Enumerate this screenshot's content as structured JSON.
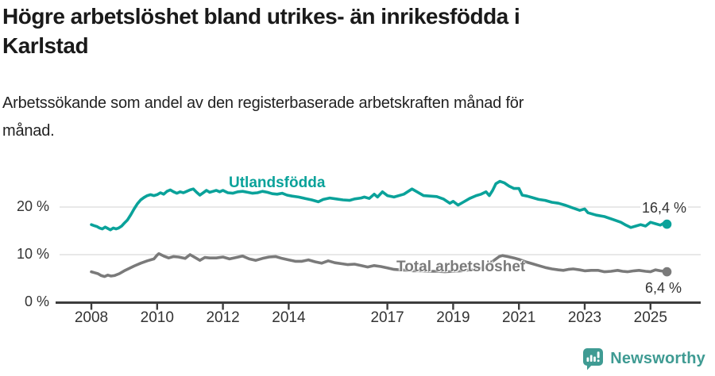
{
  "header": {
    "title_line1": "Högre arbetslöshet bland utrikes- än inrikesfödda i",
    "title_line2": "Karlstad",
    "subtitle_line1": "Arbetssökande som andel av den registerbaserade arbetskraften månad för",
    "subtitle_line2": "månad."
  },
  "footer": {
    "brand": "Newsworthy",
    "brand_color": "#3f9b93"
  },
  "chart_data": {
    "type": "line",
    "title": "Högre arbetslöshet bland utrikes- än inrikesfödda i Karlstad",
    "subtitle": "Arbetssökande som andel av den registerbaserade arbetskraften månad för månad.",
    "xlabel": "",
    "ylabel": "",
    "xlim": [
      2007.0,
      2026.5
    ],
    "ylim": [
      0,
      27.5
    ],
    "grid": "horizontal-only",
    "grid_color": "#d9d9d9",
    "axis_color": "#3d3d3d",
    "y_ticks": [
      {
        "label": "0 %",
        "value": 0
      },
      {
        "label": "10 %",
        "value": 10
      },
      {
        "label": "20 %",
        "value": 20
      }
    ],
    "x_ticks": [
      {
        "label": "2008",
        "value": 2008
      },
      {
        "label": "2010",
        "value": 2010
      },
      {
        "label": "2012",
        "value": 2012
      },
      {
        "label": "2014",
        "value": 2014
      },
      {
        "label": "2017",
        "value": 2017
      },
      {
        "label": "2019",
        "value": 2019
      },
      {
        "label": "2021",
        "value": 2021
      },
      {
        "label": "2023",
        "value": 2023
      },
      {
        "label": "2025",
        "value": 2025
      }
    ],
    "series": [
      {
        "name": "Utlandsfödda",
        "color": "#0aa29a",
        "end_label": "16,4 %",
        "end_value": 16.4,
        "points": [
          [
            2008.0,
            16.3
          ],
          [
            2008.08,
            16.1
          ],
          [
            2008.17,
            15.9
          ],
          [
            2008.25,
            15.6
          ],
          [
            2008.33,
            15.4
          ],
          [
            2008.42,
            15.8
          ],
          [
            2008.5,
            15.5
          ],
          [
            2008.58,
            15.2
          ],
          [
            2008.67,
            15.6
          ],
          [
            2008.75,
            15.4
          ],
          [
            2008.83,
            15.6
          ],
          [
            2008.92,
            16.0
          ],
          [
            2009.0,
            16.6
          ],
          [
            2009.1,
            17.3
          ],
          [
            2009.2,
            18.4
          ],
          [
            2009.3,
            19.6
          ],
          [
            2009.4,
            20.7
          ],
          [
            2009.5,
            21.5
          ],
          [
            2009.6,
            22.0
          ],
          [
            2009.7,
            22.4
          ],
          [
            2009.8,
            22.6
          ],
          [
            2009.9,
            22.4
          ],
          [
            2010.0,
            22.6
          ],
          [
            2010.1,
            23.0
          ],
          [
            2010.2,
            22.7
          ],
          [
            2010.3,
            23.3
          ],
          [
            2010.4,
            23.6
          ],
          [
            2010.5,
            23.2
          ],
          [
            2010.6,
            22.9
          ],
          [
            2010.7,
            23.2
          ],
          [
            2010.8,
            23.0
          ],
          [
            2010.9,
            23.3
          ],
          [
            2011.0,
            23.6
          ],
          [
            2011.1,
            23.8
          ],
          [
            2011.2,
            23.1
          ],
          [
            2011.3,
            22.5
          ],
          [
            2011.4,
            23.0
          ],
          [
            2011.5,
            23.5
          ],
          [
            2011.6,
            23.1
          ],
          [
            2011.7,
            23.3
          ],
          [
            2011.8,
            23.5
          ],
          [
            2011.9,
            23.2
          ],
          [
            2012.0,
            23.5
          ],
          [
            2012.15,
            23.0
          ],
          [
            2012.3,
            22.9
          ],
          [
            2012.45,
            23.2
          ],
          [
            2012.6,
            23.3
          ],
          [
            2012.75,
            23.1
          ],
          [
            2012.9,
            22.9
          ],
          [
            2013.05,
            23.0
          ],
          [
            2013.2,
            23.3
          ],
          [
            2013.35,
            23.1
          ],
          [
            2013.5,
            22.8
          ],
          [
            2013.65,
            22.7
          ],
          [
            2013.8,
            22.9
          ],
          [
            2013.95,
            22.5
          ],
          [
            2014.1,
            22.3
          ],
          [
            2014.3,
            22.1
          ],
          [
            2014.5,
            21.8
          ],
          [
            2014.7,
            21.5
          ],
          [
            2014.9,
            21.1
          ],
          [
            2015.05,
            21.6
          ],
          [
            2015.25,
            21.9
          ],
          [
            2015.45,
            21.7
          ],
          [
            2015.65,
            21.5
          ],
          [
            2015.85,
            21.4
          ],
          [
            2016.0,
            21.7
          ],
          [
            2016.2,
            21.9
          ],
          [
            2016.3,
            22.1
          ],
          [
            2016.45,
            21.8
          ],
          [
            2016.6,
            22.7
          ],
          [
            2016.7,
            22.1
          ],
          [
            2016.85,
            23.2
          ],
          [
            2017.0,
            22.4
          ],
          [
            2017.2,
            22.1
          ],
          [
            2017.5,
            22.7
          ],
          [
            2017.75,
            23.8
          ],
          [
            2017.9,
            23.2
          ],
          [
            2018.1,
            22.4
          ],
          [
            2018.3,
            22.3
          ],
          [
            2018.5,
            22.2
          ],
          [
            2018.7,
            21.7
          ],
          [
            2018.9,
            20.8
          ],
          [
            2019.0,
            21.2
          ],
          [
            2019.15,
            20.4
          ],
          [
            2019.3,
            21.0
          ],
          [
            2019.5,
            21.8
          ],
          [
            2019.7,
            22.4
          ],
          [
            2019.85,
            22.7
          ],
          [
            2020.0,
            23.2
          ],
          [
            2020.1,
            22.4
          ],
          [
            2020.2,
            23.5
          ],
          [
            2020.3,
            24.9
          ],
          [
            2020.42,
            25.4
          ],
          [
            2020.55,
            25.1
          ],
          [
            2020.7,
            24.4
          ],
          [
            2020.85,
            23.9
          ],
          [
            2021.0,
            23.9
          ],
          [
            2021.1,
            22.5
          ],
          [
            2021.25,
            22.3
          ],
          [
            2021.4,
            22.0
          ],
          [
            2021.6,
            21.6
          ],
          [
            2021.8,
            21.4
          ],
          [
            2022.0,
            21.0
          ],
          [
            2022.2,
            20.8
          ],
          [
            2022.4,
            20.4
          ],
          [
            2022.6,
            19.9
          ],
          [
            2022.85,
            19.3
          ],
          [
            2023.0,
            19.6
          ],
          [
            2023.1,
            18.8
          ],
          [
            2023.35,
            18.3
          ],
          [
            2023.6,
            18.0
          ],
          [
            2023.85,
            17.4
          ],
          [
            2024.1,
            16.8
          ],
          [
            2024.25,
            16.2
          ],
          [
            2024.4,
            15.7
          ],
          [
            2024.55,
            16.0
          ],
          [
            2024.7,
            16.3
          ],
          [
            2024.85,
            16.0
          ],
          [
            2025.0,
            16.8
          ],
          [
            2025.15,
            16.5
          ],
          [
            2025.3,
            16.2
          ],
          [
            2025.4,
            16.6
          ],
          [
            2025.5,
            16.4
          ]
        ]
      },
      {
        "name": "Total arbetslöshet",
        "color": "#7a7a7a",
        "end_label": "6,4 %",
        "end_value": 6.4,
        "points": [
          [
            2008.0,
            6.4
          ],
          [
            2008.1,
            6.2
          ],
          [
            2008.2,
            6.0
          ],
          [
            2008.3,
            5.6
          ],
          [
            2008.4,
            5.4
          ],
          [
            2008.5,
            5.7
          ],
          [
            2008.6,
            5.5
          ],
          [
            2008.7,
            5.6
          ],
          [
            2008.85,
            6.0
          ],
          [
            2009.0,
            6.6
          ],
          [
            2009.15,
            7.1
          ],
          [
            2009.3,
            7.6
          ],
          [
            2009.5,
            8.2
          ],
          [
            2009.7,
            8.7
          ],
          [
            2009.9,
            9.1
          ],
          [
            2010.0,
            9.9
          ],
          [
            2010.05,
            10.2
          ],
          [
            2010.2,
            9.7
          ],
          [
            2010.35,
            9.3
          ],
          [
            2010.5,
            9.6
          ],
          [
            2010.65,
            9.5
          ],
          [
            2010.85,
            9.2
          ],
          [
            2011.0,
            10.0
          ],
          [
            2011.15,
            9.4
          ],
          [
            2011.3,
            8.8
          ],
          [
            2011.45,
            9.4
          ],
          [
            2011.6,
            9.3
          ],
          [
            2011.8,
            9.3
          ],
          [
            2012.0,
            9.5
          ],
          [
            2012.2,
            9.1
          ],
          [
            2012.4,
            9.4
          ],
          [
            2012.6,
            9.7
          ],
          [
            2012.8,
            9.1
          ],
          [
            2013.0,
            8.8
          ],
          [
            2013.2,
            9.2
          ],
          [
            2013.4,
            9.5
          ],
          [
            2013.6,
            9.6
          ],
          [
            2013.8,
            9.2
          ],
          [
            2014.0,
            8.9
          ],
          [
            2014.2,
            8.6
          ],
          [
            2014.4,
            8.6
          ],
          [
            2014.6,
            8.9
          ],
          [
            2014.8,
            8.5
          ],
          [
            2015.0,
            8.2
          ],
          [
            2015.2,
            8.7
          ],
          [
            2015.4,
            8.3
          ],
          [
            2015.6,
            8.1
          ],
          [
            2015.8,
            7.9
          ],
          [
            2016.0,
            8.0
          ],
          [
            2016.2,
            7.7
          ],
          [
            2016.4,
            7.4
          ],
          [
            2016.6,
            7.7
          ],
          [
            2016.8,
            7.5
          ],
          [
            2017.0,
            7.2
          ],
          [
            2017.2,
            6.9
          ],
          [
            2017.4,
            6.8
          ],
          [
            2017.6,
            6.7
          ],
          [
            2017.8,
            6.6
          ],
          [
            2018.0,
            6.6
          ],
          [
            2018.25,
            6.5
          ],
          [
            2018.5,
            6.5
          ],
          [
            2018.75,
            6.4
          ],
          [
            2019.0,
            6.5
          ],
          [
            2019.25,
            6.6
          ],
          [
            2019.5,
            6.8
          ],
          [
            2019.75,
            7.0
          ],
          [
            2020.0,
            7.3
          ],
          [
            2020.2,
            8.6
          ],
          [
            2020.4,
            9.6
          ],
          [
            2020.5,
            9.8
          ],
          [
            2020.65,
            9.6
          ],
          [
            2020.85,
            9.3
          ],
          [
            2021.0,
            9.0
          ],
          [
            2021.2,
            8.5
          ],
          [
            2021.4,
            8.1
          ],
          [
            2021.6,
            7.7
          ],
          [
            2021.8,
            7.3
          ],
          [
            2022.0,
            7.0
          ],
          [
            2022.2,
            6.8
          ],
          [
            2022.35,
            6.7
          ],
          [
            2022.5,
            6.9
          ],
          [
            2022.65,
            7.0
          ],
          [
            2022.85,
            6.8
          ],
          [
            2023.0,
            6.6
          ],
          [
            2023.2,
            6.7
          ],
          [
            2023.4,
            6.7
          ],
          [
            2023.6,
            6.4
          ],
          [
            2023.8,
            6.5
          ],
          [
            2024.0,
            6.7
          ],
          [
            2024.15,
            6.5
          ],
          [
            2024.3,
            6.4
          ],
          [
            2024.5,
            6.6
          ],
          [
            2024.65,
            6.7
          ],
          [
            2024.85,
            6.5
          ],
          [
            2025.0,
            6.4
          ],
          [
            2025.15,
            6.8
          ],
          [
            2025.3,
            6.6
          ],
          [
            2025.4,
            6.5
          ],
          [
            2025.5,
            6.4
          ]
        ]
      }
    ],
    "legend_position": "inline-labels"
  }
}
